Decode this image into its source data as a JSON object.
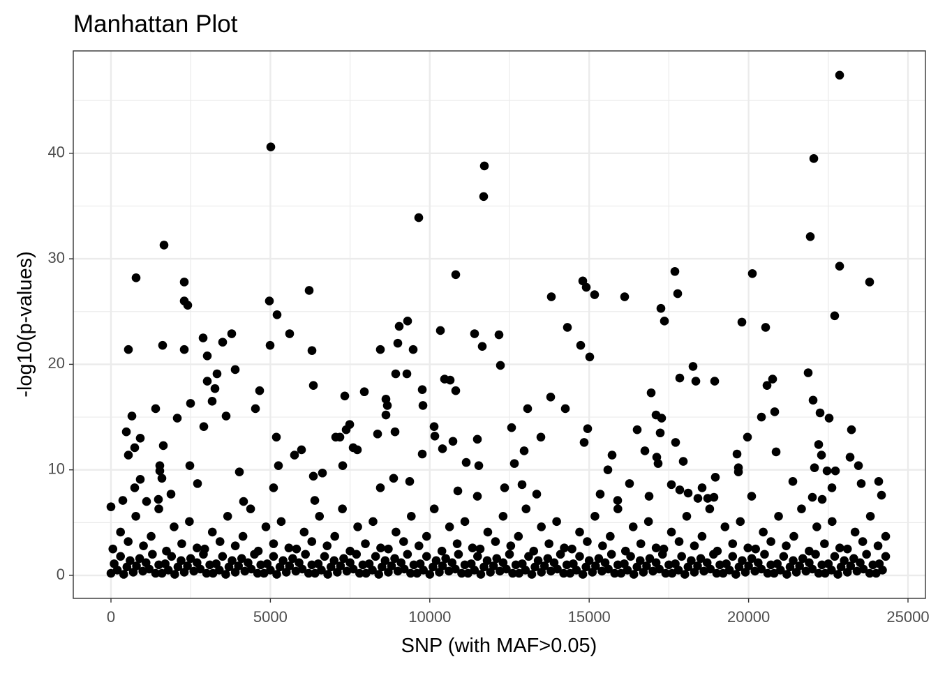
{
  "chart_data": {
    "type": "scatter",
    "title": "Manhattan Plot",
    "x_label": "SNP (with MAF>0.05)",
    "y_label": "-log10(p-values)",
    "color": "#000000",
    "grid": true,
    "minor_grid": true,
    "xlim": [
      -1182,
      25547
    ],
    "ylim": [
      -2.18,
      49.7
    ],
    "xticks": [
      0,
      5000,
      10000,
      15000,
      20000,
      25000
    ],
    "yticks": [
      0,
      10,
      20,
      30,
      40
    ],
    "x": [
      22855,
      5013,
      11712,
      22045,
      11690,
      9654,
      21935,
      1664,
      22855,
      788,
      10814,
      17688,
      20118,
      23796,
      2299,
      14799,
      14908,
      6217,
      17776,
      15170,
      13813,
      16112,
      2299,
      4969,
      2408,
      17250,
      5210,
      22700,
      9304,
      17360,
      9041,
      19790,
      14317,
      20534,
      10333,
      11405,
      3787,
      5604,
      12171,
      3503,
      2890,
      8997,
      1620,
      4991,
      14733,
      11646,
      547,
      2299,
      6305,
      8450,
      9479,
      15017,
      3021,
      12216,
      18257,
      3897,
      3327,
      8931,
      9282,
      21869,
      3021,
      18936,
      10464,
      20753,
      17841,
      18345,
      10639,
      6349,
      20578,
      3262,
      9764,
      10814,
      4663,
      7947,
      16944,
      7334,
      13792,
      8625,
      22023,
      3174,
      2496,
      9786,
      8669,
      4532,
      1401,
      13069,
      14252,
      20819,
      22242,
      3612,
      8625,
      17097,
      657,
      17272,
      20403,
      2080,
      22526,
      7488,
      10136,
      2912,
      12566,
      14952,
      23227,
      16506,
      7378,
      482,
      8910,
      8363,
      17228,
      13485,
      7049,
      19965,
      5188,
      10158,
      7181,
      919,
      11493,
      10727,
      14842,
      17710,
      1642,
      22198,
      10399,
      744,
      7597,
      16747,
      7728,
      20863,
      5976,
      15718,
      5757,
      9764,
      19637,
      17119,
      23183,
      547,
      22286,
      12960,
      11143,
      17162,
      17951,
      11537,
      5253,
      1532,
      7269,
      23446,
      12654,
      2474,
      22067,
      19681,
      22723,
      15586,
      1532,
      4028,
      19681,
      6633,
      22461,
      6349,
      8866,
      18957,
      1598,
      919,
      24081,
      9370,
      21388,
      2715,
      16265,
      23533,
      17579,
      12894,
      12347,
      5100,
      18542,
      8450,
      744,
      10880,
      17841,
      22614,
      1883,
      18104,
      11493,
      15345,
      24169,
      20096,
      16878,
      18913,
      18410,
      13354,
      18717,
      1488,
      22308,
      372,
      15893,
      6393,
      4159,
      1116,
      22001,
      0,
      60,
      300,
      540,
      780,
      1020,
      1260,
      1500,
      1740,
      1980,
      2220,
      2460,
      2700,
      2940,
      3180,
      3420,
      3660,
      3900,
      4140,
      4380,
      4620,
      4860,
      5100,
      5340,
      5580,
      5820,
      6060,
      6300,
      6540,
      6780,
      7020,
      7260,
      7500,
      7740,
      7980,
      8220,
      8460,
      8700,
      8940,
      9180,
      9420,
      9660,
      9900,
      10140,
      10380,
      10620,
      10860,
      11100,
      11340,
      11580,
      11820,
      12060,
      12300,
      12540,
      12780,
      13020,
      13260,
      13500,
      13740,
      13980,
      14220,
      14460,
      14700,
      14940,
      15180,
      15420,
      15660,
      15900,
      16140,
      16380,
      16620,
      16860,
      17100,
      17340,
      17580,
      17820,
      18060,
      18300,
      18540,
      18780,
      19020,
      19260,
      19500,
      19740,
      19980,
      20220,
      20460,
      20700,
      20940,
      21180,
      21420,
      21660,
      21900,
      22140,
      22380,
      22620,
      22860,
      23100,
      23340,
      23580,
      23820,
      24060,
      24300,
      0,
      100,
      200,
      300,
      400,
      500,
      600,
      700,
      800,
      900,
      1000,
      1100,
      1200,
      1300,
      1400,
      1500,
      1600,
      1700,
      1800,
      1900,
      2000,
      2100,
      2200,
      2300,
      2400,
      2500,
      2600,
      2700,
      2800,
      2900,
      3000,
      3100,
      3200,
      3300,
      3400,
      3500,
      3600,
      3700,
      3800,
      3900,
      4000,
      4100,
      4200,
      4300,
      4400,
      4500,
      4600,
      4700,
      4800,
      4900,
      5000,
      5100,
      5200,
      5300,
      5400,
      5500,
      5600,
      5700,
      5800,
      5900,
      6000,
      6100,
      6200,
      6300,
      6400,
      6500,
      6600,
      6700,
      6800,
      6900,
      7000,
      7100,
      7200,
      7300,
      7400,
      7500,
      7600,
      7700,
      7800,
      7900,
      8000,
      8100,
      8200,
      8300,
      8400,
      8500,
      8600,
      8700,
      8800,
      8900,
      9000,
      9100,
      9200,
      9300,
      9400,
      9500,
      9600,
      9700,
      9800,
      9900,
      10000,
      10100,
      10200,
      10300,
      10400,
      10500,
      10600,
      10700,
      10800,
      10900,
      11000,
      11100,
      11200,
      11300,
      11400,
      11500,
      11600,
      11700,
      11800,
      11900,
      12000,
      12100,
      12200,
      12300,
      12400,
      12500,
      12600,
      12700,
      12800,
      12900,
      13000,
      13100,
      13200,
      13300,
      13400,
      13500,
      13600,
      13700,
      13800,
      13900,
      14000,
      14100,
      14200,
      14300,
      14400,
      14500,
      14600,
      14700,
      14800,
      14900,
      15000,
      15100,
      15200,
      15300,
      15400,
      15500,
      15600,
      15700,
      15800,
      15900,
      16000,
      16100,
      16200,
      16300,
      16400,
      16500,
      16600,
      16700,
      16800,
      16900,
      17000,
      17100,
      17200,
      17300,
      17400,
      17500,
      17600,
      17700,
      17800,
      17900,
      18000,
      18100,
      18200,
      18300,
      18400,
      18500,
      18600,
      18700,
      18800,
      18900,
      19000,
      19100,
      19200,
      19300,
      19400,
      19500,
      19600,
      19700,
      19800,
      19900,
      20000,
      20100,
      20200,
      20300,
      20400,
      20500,
      20600,
      20700,
      20800,
      20900,
      21000,
      21100,
      21200,
      21300,
      21400,
      21500,
      21600,
      21700,
      21800,
      21900,
      22000,
      22100,
      22200,
      22300,
      22400,
      22500,
      22600,
      22700,
      22800,
      22900,
      23000,
      23100,
      23200,
      23300,
      23400,
      23500,
      23600,
      23700,
      23800,
      23900,
      24000,
      24100,
      24200,
      24300
    ],
    "values": [
      47.4,
      40.6,
      38.8,
      39.5,
      35.9,
      33.9,
      32.1,
      31.3,
      29.3,
      28.2,
      28.5,
      28.8,
      28.6,
      27.8,
      27.8,
      27.9,
      27.3,
      27.0,
      26.7,
      26.6,
      26.4,
      26.4,
      26.0,
      26.0,
      25.6,
      25.3,
      24.7,
      24.6,
      24.1,
      24.1,
      23.6,
      24.0,
      23.5,
      23.5,
      23.2,
      22.9,
      22.9,
      22.9,
      22.8,
      22.1,
      22.5,
      22.0,
      21.8,
      21.8,
      21.8,
      21.7,
      21.4,
      21.4,
      21.3,
      21.4,
      21.4,
      20.7,
      20.8,
      19.9,
      19.8,
      19.5,
      19.1,
      19.1,
      19.1,
      19.2,
      18.4,
      18.4,
      18.6,
      18.6,
      18.7,
      18.4,
      18.5,
      18.0,
      18.0,
      17.7,
      17.6,
      17.5,
      17.5,
      17.4,
      17.3,
      17.0,
      16.9,
      16.7,
      16.6,
      16.5,
      16.3,
      16.1,
      16.1,
      15.8,
      15.8,
      15.8,
      15.8,
      15.5,
      15.4,
      15.1,
      15.2,
      15.2,
      15.1,
      14.9,
      15.0,
      14.9,
      14.9,
      14.3,
      14.1,
      14.1,
      14.0,
      13.9,
      13.8,
      13.8,
      13.8,
      13.6,
      13.6,
      13.4,
      13.5,
      13.1,
      13.1,
      13.1,
      13.1,
      13.2,
      13.1,
      13.0,
      12.9,
      12.7,
      12.6,
      12.6,
      12.3,
      12.4,
      12.0,
      12.1,
      12.1,
      11.8,
      11.9,
      11.7,
      11.9,
      11.4,
      11.4,
      11.5,
      11.5,
      11.2,
      11.2,
      11.4,
      11.4,
      11.8,
      10.7,
      10.6,
      10.8,
      10.4,
      10.4,
      10.4,
      10.4,
      10.4,
      10.6,
      10.4,
      10.2,
      10.2,
      9.9,
      10.0,
      9.9,
      9.8,
      9.8,
      9.7,
      9.9,
      9.4,
      9.2,
      9.3,
      9.2,
      9.1,
      8.9,
      8.9,
      8.9,
      8.7,
      8.7,
      8.7,
      8.6,
      8.6,
      8.3,
      8.3,
      8.3,
      8.3,
      8.3,
      8.0,
      8.1,
      8.3,
      7.7,
      7.8,
      7.5,
      7.7,
      7.6,
      7.5,
      7.5,
      7.4,
      7.3,
      7.7,
      7.3,
      7.2,
      7.2,
      7.1,
      7.1,
      7.1,
      7.0,
      7.0,
      7.4,
      6.5,
      2.5,
      4.1,
      3.2,
      5.6,
      2.8,
      3.7,
      6.3,
      2.3,
      4.6,
      3.0,
      5.1,
      2.6,
      2.5,
      4.1,
      3.2,
      5.6,
      2.8,
      3.7,
      6.3,
      2.3,
      4.6,
      3.0,
      5.1,
      2.6,
      2.5,
      4.1,
      3.2,
      5.6,
      2.8,
      3.7,
      6.3,
      2.3,
      4.6,
      3.0,
      5.1,
      2.6,
      2.5,
      4.1,
      3.2,
      5.6,
      2.8,
      3.7,
      6.3,
      2.3,
      4.6,
      3.0,
      5.1,
      2.6,
      2.5,
      4.1,
      3.2,
      5.6,
      2.8,
      3.7,
      6.3,
      2.3,
      4.6,
      3.0,
      5.1,
      2.6,
      2.5,
      4.1,
      3.2,
      5.6,
      2.8,
      3.7,
      6.3,
      2.3,
      4.6,
      3.0,
      5.1,
      2.6,
      2.5,
      4.1,
      3.2,
      5.6,
      2.8,
      3.7,
      6.3,
      2.3,
      4.6,
      3.0,
      5.1,
      2.6,
      2.5,
      4.1,
      3.2,
      5.6,
      2.8,
      3.7,
      6.3,
      2.3,
      4.6,
      3.0,
      5.1,
      2.6,
      2.5,
      4.1,
      3.2,
      5.6,
      2.8,
      3.7,
      0.2,
      1.1,
      0.5,
      1.8,
      0.1,
      0.8,
      1.4,
      0.3,
      0.9,
      1.6,
      0.4,
      1.2,
      0.6,
      2.0,
      0.2,
      1.0,
      0.2,
      1.1,
      0.5,
      1.8,
      0.1,
      0.8,
      1.4,
      0.3,
      0.9,
      1.6,
      0.4,
      1.2,
      0.6,
      2.0,
      0.2,
      1.0,
      0.2,
      1.1,
      0.5,
      1.8,
      0.1,
      0.8,
      1.4,
      0.3,
      0.9,
      1.6,
      0.4,
      1.2,
      0.6,
      2.0,
      0.2,
      1.0,
      0.2,
      1.1,
      0.5,
      1.8,
      0.1,
      0.8,
      1.4,
      0.3,
      0.9,
      1.6,
      0.4,
      1.2,
      0.6,
      2.0,
      0.2,
      1.0,
      0.2,
      1.1,
      0.5,
      1.8,
      0.1,
      0.8,
      1.4,
      0.3,
      0.9,
      1.6,
      0.4,
      1.2,
      0.6,
      2.0,
      0.2,
      1.0,
      0.2,
      1.1,
      0.5,
      1.8,
      0.1,
      0.8,
      1.4,
      0.3,
      0.9,
      1.6,
      0.4,
      1.2,
      0.6,
      2.0,
      0.2,
      1.0,
      0.2,
      1.1,
      0.5,
      1.8,
      0.1,
      0.8,
      1.4,
      0.3,
      0.9,
      1.6,
      0.4,
      1.2,
      0.6,
      2.0,
      0.2,
      1.0,
      0.2,
      1.1,
      0.5,
      1.8,
      0.1,
      0.8,
      1.4,
      0.3,
      0.9,
      1.6,
      0.4,
      1.2,
      0.6,
      2.0,
      0.2,
      1.0,
      0.2,
      1.1,
      0.5,
      1.8,
      0.1,
      0.8,
      1.4,
      0.3,
      0.9,
      1.6,
      0.4,
      1.2,
      0.6,
      2.0,
      0.2,
      1.0,
      0.2,
      1.1,
      0.5,
      1.8,
      0.1,
      0.8,
      1.4,
      0.3,
      0.9,
      1.6,
      0.4,
      1.2,
      0.6,
      2.0,
      0.2,
      1.0,
      0.2,
      1.1,
      0.5,
      1.8,
      0.1,
      0.8,
      1.4,
      0.3,
      0.9,
      1.6,
      0.4,
      1.2,
      0.6,
      2.0,
      0.2,
      1.0,
      0.2,
      1.1,
      0.5,
      1.8,
      0.1,
      0.8,
      1.4,
      0.3,
      0.9,
      1.6,
      0.4,
      1.2,
      0.6,
      2.0,
      0.2,
      1.0,
      0.2,
      1.1,
      0.5,
      1.8,
      0.1,
      0.8,
      1.4,
      0.3,
      0.9,
      1.6,
      0.4,
      1.2,
      0.6,
      2.0,
      0.2,
      1.0,
      0.2,
      1.1,
      0.5,
      1.8,
      0.1,
      0.8,
      1.4,
      0.3,
      0.9,
      1.6,
      0.4,
      1.2,
      0.6,
      2.0,
      0.2,
      1.0,
      0.2,
      1.1,
      0.5,
      1.8,
      0.1,
      0.8,
      1.4,
      0.3,
      0.9,
      1.6,
      0.4,
      1.2,
      0.6,
      2.0,
      0.2,
      1.0,
      0.2,
      1.1,
      0.5,
      1.8
    ]
  }
}
